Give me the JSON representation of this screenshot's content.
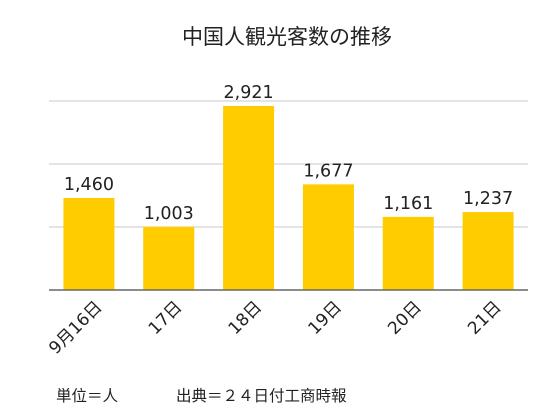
{
  "chart_data": {
    "type": "bar",
    "title": "中国人観光客数の推移",
    "categories": [
      "9月16日",
      "17日",
      "18日",
      "19日",
      "20日",
      "21日"
    ],
    "values": [
      1460,
      1003,
      2921,
      1677,
      1161,
      1237
    ],
    "data_labels": [
      "1,460",
      "1,003",
      "2,921",
      "1,677",
      "1,161",
      "1,237"
    ],
    "ylim": [
      0,
      3000
    ],
    "gridlines": [
      1000,
      2000,
      3000
    ],
    "grid": true,
    "legend": "none",
    "bar_color": "#FFCC00",
    "unit_note": "単位＝人",
    "source_note": "出典＝２４日付工商時報"
  }
}
